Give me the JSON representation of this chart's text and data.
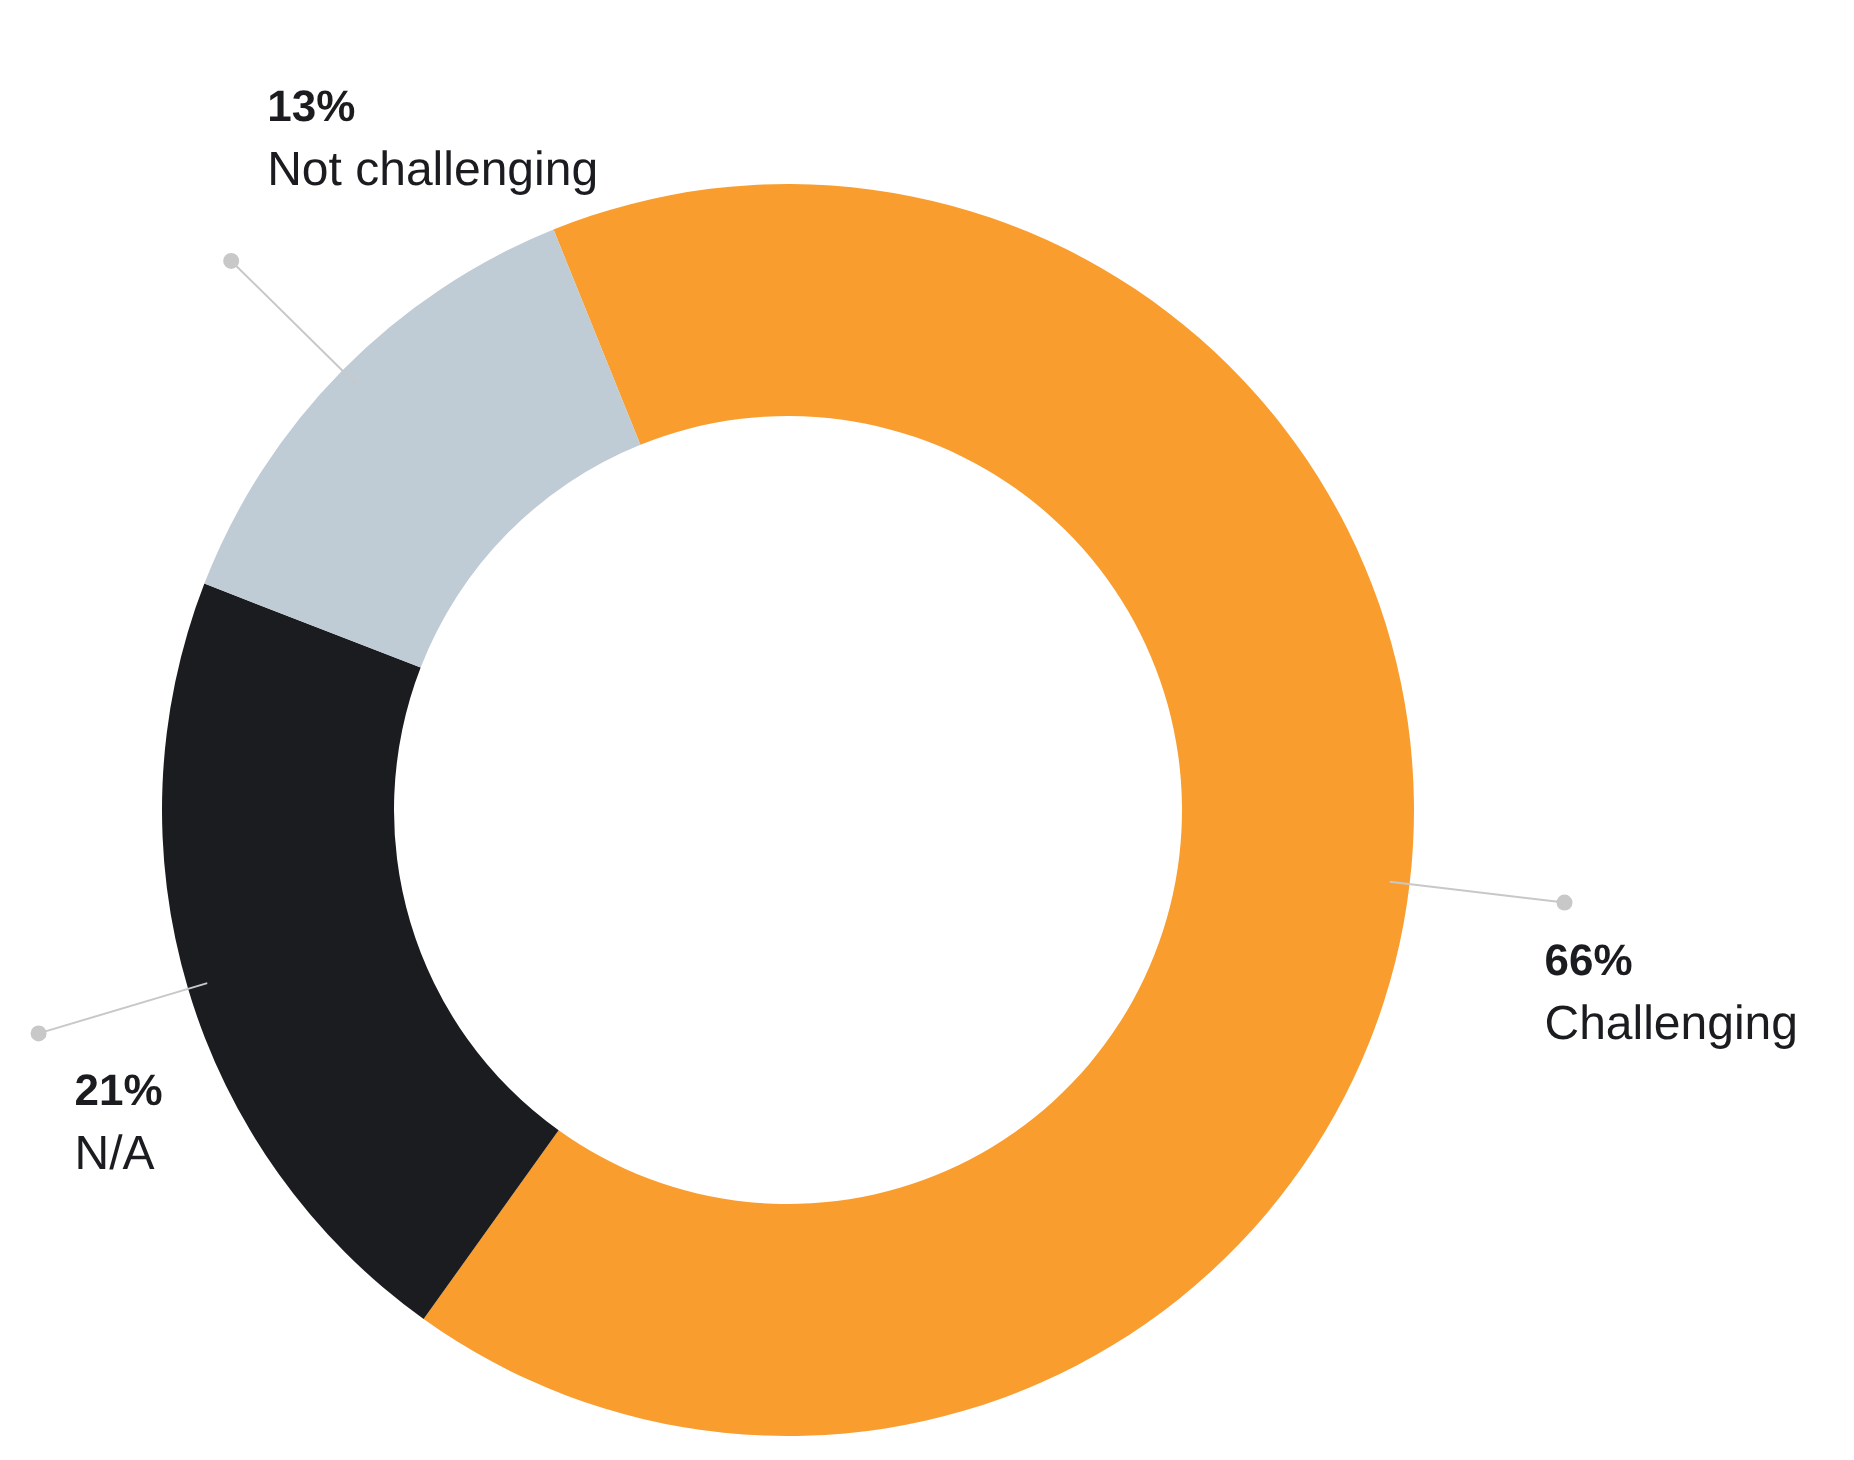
{
  "chart_data": {
    "type": "donut",
    "categories": [
      "Challenging",
      "N/A",
      "Not challenging"
    ],
    "values": [
      66,
      21,
      13
    ],
    "colors": [
      "#f99d2f",
      "#1b1c20",
      "#bfcbd5"
    ],
    "value_labels": [
      "66%",
      "21%",
      "13%"
    ],
    "legend": false
  }
}
